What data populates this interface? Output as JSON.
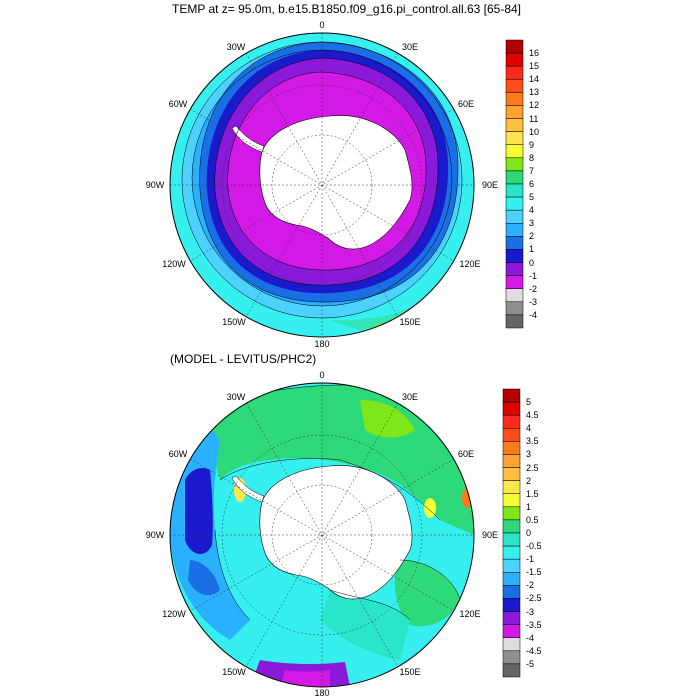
{
  "panels": [
    {
      "title": "TEMP at z=  95.0m, b.e15.B1850.f09_g16.pi_control.all.63 [65-84]",
      "lon_labels": [
        "0",
        "30E",
        "60E",
        "90E",
        "120E",
        "150E",
        "180",
        "150W",
        "120W",
        "90W",
        "60W",
        "30W"
      ],
      "colorbar_ticks": [
        "16",
        "15",
        "14",
        "13",
        "12",
        "11",
        "10",
        "9",
        "8",
        "7",
        "6",
        "5",
        "4",
        "3",
        "2",
        "1",
        "0",
        "-1",
        "-2",
        "-3",
        "-4"
      ],
      "colorbar_colors": [
        "#b30000",
        "#e00000",
        "#ff2a1a",
        "#ff4d1a",
        "#ff7a1a",
        "#ffa033",
        "#ffc040",
        "#ffe64d",
        "#f5ff33",
        "#7fe619",
        "#2ed97a",
        "#29e6c8",
        "#36f0f0",
        "#4dd2ff",
        "#29b0ff",
        "#1a6fe6",
        "#1a1acc",
        "#8a19d9",
        "#d219e6",
        "#dddddd",
        "#8f8f8f",
        "#666666"
      ]
    },
    {
      "title": "(MODEL - LEVITUS/PHC2)",
      "lon_labels": [
        "0",
        "30E",
        "60E",
        "90E",
        "120E",
        "150E",
        "180",
        "150W",
        "120W",
        "90W",
        "60W",
        "30W"
      ],
      "colorbar_ticks": [
        "5",
        "4.5",
        "4",
        "3.5",
        "3",
        "2.5",
        "2",
        "1.5",
        "1",
        "0.5",
        "0",
        "-0.5",
        "-1",
        "-1.5",
        "-2",
        "-2.5",
        "-3",
        "-3.5",
        "-4",
        "-4.5",
        "-5"
      ],
      "colorbar_colors": [
        "#b30000",
        "#e00000",
        "#ff2a1a",
        "#ff4d1a",
        "#ff7a1a",
        "#ffa033",
        "#ffc040",
        "#ffe64d",
        "#f5ff33",
        "#7fe619",
        "#2ed97a",
        "#29e6c8",
        "#36f0f0",
        "#4dd2ff",
        "#29b0ff",
        "#1a6fe6",
        "#1a1acc",
        "#8a19d9",
        "#d219e6",
        "#dddddd",
        "#8f8f8f",
        "#666666"
      ]
    }
  ]
}
